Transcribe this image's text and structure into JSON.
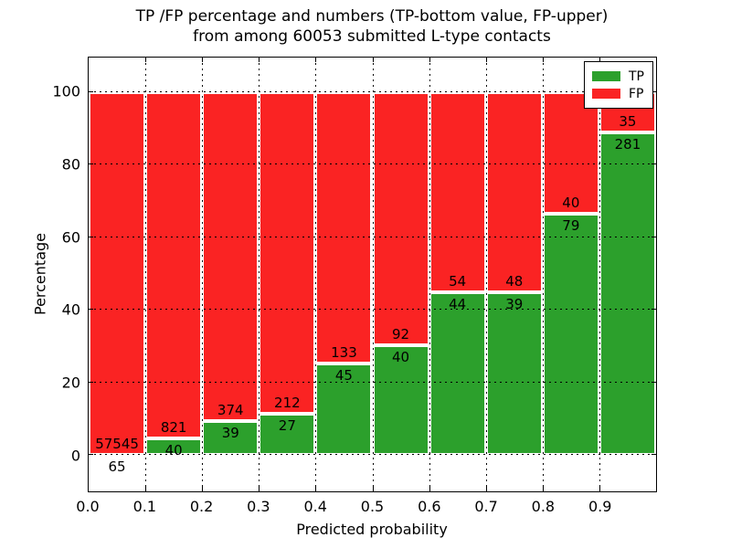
{
  "title": {
    "line1": "TP /FP percentage and numbers (TP-bottom value, FP-upper)",
    "line2": "from among 60053 submitted L-type contacts"
  },
  "axes": {
    "xlabel": "Predicted probability",
    "ylabel": "Percentage",
    "x_tick_labels": [
      "0.0",
      "0.1",
      "0.2",
      "0.3",
      "0.4",
      "0.5",
      "0.6",
      "0.7",
      "0.8",
      "0.9"
    ],
    "x_tick_positions": [
      0.0,
      0.1,
      0.2,
      0.3,
      0.4,
      0.5,
      0.6,
      0.7,
      0.8,
      0.9
    ],
    "y_tick_labels": [
      "0",
      "20",
      "40",
      "60",
      "80",
      "100"
    ],
    "y_tick_values": [
      0,
      20,
      40,
      60,
      80,
      100
    ],
    "xlim": [
      0.0,
      1.0
    ],
    "ylim": [
      -10,
      109.5
    ],
    "grid": "dotted black, drawn above bars"
  },
  "chart_data": {
    "type": "bar",
    "stacked": true,
    "normalized_to_percent": true,
    "title": "TP /FP percentage and numbers (TP-bottom value, FP-upper) from among 60053 submitted L-type contacts",
    "xlabel": "Predicted probability",
    "ylabel": "Percentage",
    "ylim": [
      -10,
      109.5
    ],
    "legend_position": "upper right",
    "categories": [
      "0.0-0.1",
      "0.1-0.2",
      "0.2-0.3",
      "0.3-0.4",
      "0.4-0.5",
      "0.5-0.6",
      "0.6-0.7",
      "0.7-0.8",
      "0.8-0.9",
      "0.9-1.0"
    ],
    "bin_start": [
      0.0,
      0.1,
      0.2,
      0.3,
      0.4,
      0.5,
      0.6,
      0.7,
      0.8,
      0.9
    ],
    "series": [
      {
        "name": "TP",
        "color": "#2ca02c",
        "counts": [
          65,
          40,
          39,
          27,
          45,
          40,
          44,
          39,
          79,
          281
        ]
      },
      {
        "name": "FP",
        "color": "#fa2323",
        "counts": [
          57545,
          821,
          374,
          212,
          133,
          92,
          54,
          48,
          40,
          35
        ]
      }
    ],
    "total_submitted_contacts": 60053,
    "annotation_note": "TP count printed at bottom of each stack, FP count printed above it"
  },
  "legend": {
    "tp_label": "TP",
    "fp_label": "FP",
    "tp_color": "#2ca02c",
    "fp_color": "#fa2323"
  },
  "colors": {
    "tp_green": "#2ca02c",
    "fp_red": "#fa2323",
    "edge_white": "#ffffff",
    "axis_black": "#000000",
    "background": "#ffffff"
  }
}
